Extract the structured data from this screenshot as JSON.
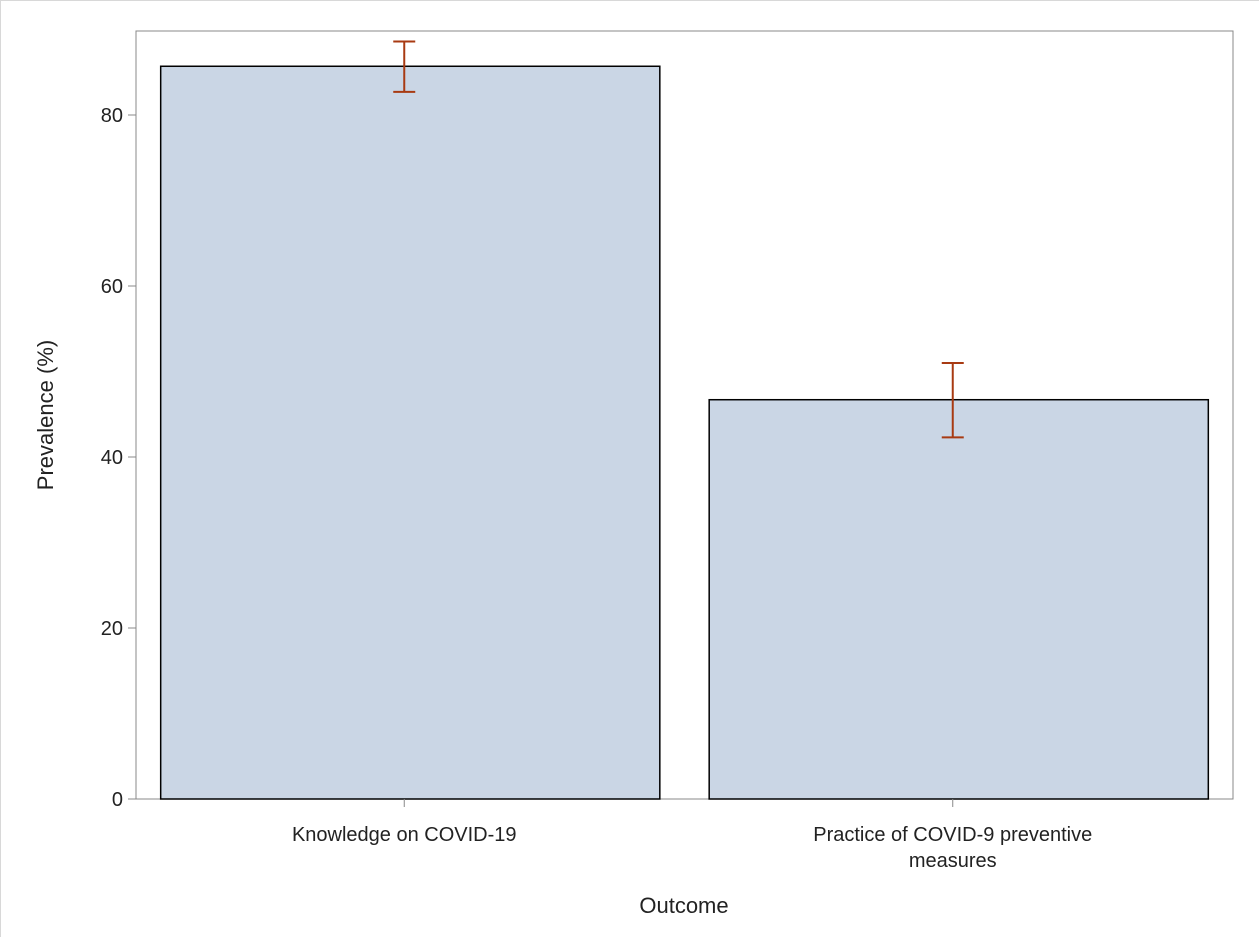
{
  "chart_data": {
    "type": "bar",
    "categories": [
      [
        "Knowledge on COVID-19"
      ],
      [
        "Practice of  COVID-9 preventive",
        "measures"
      ]
    ],
    "values": [
      85.7,
      46.7
    ],
    "error_low": [
      82.7,
      42.3
    ],
    "error_high": [
      88.6,
      51.0
    ],
    "title": "",
    "xlabel": "Outcome",
    "ylabel": "Prevalence (%)",
    "ylim": [
      0,
      90
    ],
    "yticks": [
      0,
      20,
      40,
      60,
      80
    ],
    "ytick_labels": [
      "0",
      "20",
      "40",
      "60",
      "80"
    ],
    "grid": false,
    "legend": "none",
    "colors": {
      "bar_fill": "#cad6e5",
      "bar_stroke": "#000000",
      "error_bar": "#a83a12",
      "axis": "#888888"
    }
  }
}
